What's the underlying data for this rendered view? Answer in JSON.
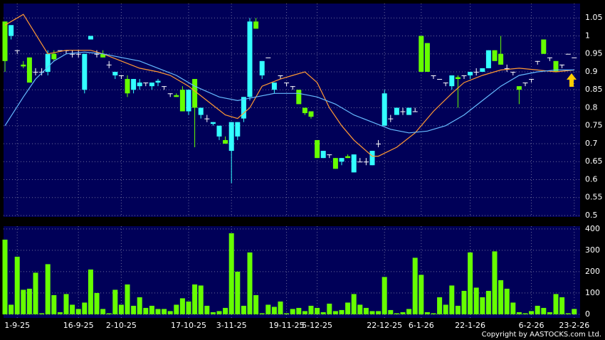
{
  "chart_data": [
    {
      "type": "candlestick",
      "categories": [
        null,
        null,
        "1-9-25",
        null,
        null,
        null,
        null,
        null,
        null,
        null,
        null,
        null,
        "16-9-25",
        null,
        null,
        null,
        null,
        null,
        null,
        "2-10-25",
        null,
        null,
        null,
        null,
        null,
        null,
        null,
        null,
        null,
        null,
        "17-10-25",
        null,
        null,
        null,
        null,
        null,
        null,
        "3-11-25",
        null,
        null,
        null,
        null,
        null,
        null,
        null,
        null,
        "19-11-25",
        null,
        null,
        null,
        null,
        "5-12-25",
        null,
        null,
        null,
        null,
        null,
        null,
        null,
        null,
        null,
        null,
        "22-12-25",
        null,
        null,
        null,
        null,
        null,
        "6-1-26",
        null,
        null,
        null,
        null,
        null,
        null,
        null,
        "22-1-26",
        null,
        null,
        null,
        null,
        null,
        null,
        null,
        null,
        null,
        "6-2-26",
        null,
        null,
        null,
        null,
        null,
        null,
        "23-2-26"
      ],
      "open": [
        1.04,
        1.0,
        0.96,
        0.92,
        0.94,
        0.9,
        0.9,
        0.9,
        0.95,
        0.96,
        0.96,
        0.95,
        0.95,
        0.85,
        0.99,
        0.95,
        0.95,
        0.92,
        0.89,
        0.89,
        0.88,
        0.85,
        0.86,
        0.87,
        0.86,
        0.87,
        0.86,
        0.84,
        0.835,
        0.85,
        0.79,
        0.88,
        0.78,
        0.77,
        0.755,
        0.72,
        0.71,
        0.68,
        0.72,
        0.77,
        0.83,
        1.04,
        0.89,
        0.94,
        0.85,
        0.89,
        0.87,
        0.86,
        0.85,
        0.8,
        0.79,
        0.71,
        0.66,
        0.67,
        0.66,
        0.65,
        0.665,
        0.62,
        0.65,
        0.65,
        0.64,
        0.7,
        0.75,
        0.77,
        0.78,
        0.79,
        0.78,
        0.79,
        1.0,
        0.98,
        0.89,
        0.88,
        0.87,
        0.86,
        0.885,
        0.89,
        0.89,
        0.9,
        0.9,
        0.91,
        0.96,
        0.95,
        0.91,
        0.9,
        0.86,
        0.87,
        0.88,
        0.93,
        0.99,
        0.94,
        0.93,
        0.92,
        0.95,
        0.94
      ],
      "high": [
        1.04,
        1.03,
        0.96,
        0.93,
        0.94,
        0.91,
        0.91,
        0.96,
        0.96,
        0.96,
        0.96,
        0.96,
        0.96,
        0.95,
        1.0,
        0.96,
        0.96,
        0.93,
        0.9,
        0.89,
        0.89,
        0.88,
        0.88,
        0.87,
        0.87,
        0.88,
        0.86,
        0.84,
        0.84,
        0.86,
        0.85,
        0.88,
        0.8,
        0.78,
        0.76,
        0.75,
        0.72,
        0.76,
        0.76,
        0.83,
        1.05,
        1.05,
        0.93,
        0.94,
        0.87,
        0.89,
        0.87,
        0.86,
        0.85,
        0.8,
        0.79,
        0.71,
        0.68,
        0.67,
        0.66,
        0.66,
        0.67,
        0.67,
        0.66,
        0.66,
        0.68,
        0.71,
        0.85,
        0.78,
        0.8,
        0.8,
        0.8,
        0.8,
        1.0,
        0.98,
        0.89,
        0.88,
        0.87,
        0.89,
        0.89,
        0.89,
        0.9,
        0.91,
        0.91,
        0.96,
        0.96,
        1.0,
        0.92,
        0.9,
        0.86,
        0.87,
        0.88,
        0.93,
        0.99,
        0.94,
        0.93,
        0.92,
        0.95,
        0.94
      ],
      "low": [
        0.9,
        0.99,
        0.95,
        0.91,
        0.87,
        0.89,
        0.89,
        0.89,
        0.93,
        0.96,
        0.95,
        0.94,
        0.94,
        0.84,
        0.99,
        0.94,
        0.94,
        0.91,
        0.88,
        0.88,
        0.83,
        0.84,
        0.85,
        0.86,
        0.85,
        0.86,
        0.85,
        0.83,
        0.83,
        0.79,
        0.78,
        0.69,
        0.77,
        0.76,
        0.75,
        0.71,
        0.7,
        0.59,
        0.71,
        0.76,
        0.82,
        1.02,
        0.88,
        0.94,
        0.84,
        0.88,
        0.86,
        0.85,
        0.81,
        0.78,
        0.77,
        0.66,
        0.66,
        0.66,
        0.63,
        0.64,
        0.66,
        0.62,
        0.65,
        0.64,
        0.64,
        0.69,
        0.75,
        0.76,
        0.78,
        0.78,
        0.78,
        0.79,
        0.9,
        0.9,
        0.88,
        0.88,
        0.86,
        0.85,
        0.8,
        0.88,
        0.88,
        0.89,
        0.9,
        0.91,
        0.93,
        0.92,
        0.9,
        0.89,
        0.81,
        0.86,
        0.87,
        0.92,
        0.95,
        0.93,
        0.9,
        0.91,
        0.95,
        0.94
      ],
      "close": [
        0.93,
        1.03,
        0.96,
        0.915,
        0.87,
        0.9,
        0.9,
        0.95,
        0.935,
        0.96,
        0.96,
        0.95,
        0.95,
        0.95,
        1.0,
        0.95,
        0.94,
        0.92,
        0.9,
        0.89,
        0.84,
        0.88,
        0.87,
        0.87,
        0.87,
        0.875,
        0.86,
        0.84,
        0.83,
        0.79,
        0.85,
        0.8,
        0.8,
        0.77,
        0.76,
        0.75,
        0.7,
        0.76,
        0.76,
        0.83,
        1.04,
        1.02,
        0.93,
        0.94,
        0.87,
        0.89,
        0.87,
        0.86,
        0.81,
        0.785,
        0.775,
        0.66,
        0.68,
        0.67,
        0.63,
        0.66,
        0.66,
        0.67,
        0.65,
        0.65,
        0.68,
        0.7,
        0.84,
        0.77,
        0.8,
        0.79,
        0.8,
        0.79,
        0.9,
        0.9,
        0.89,
        0.88,
        0.87,
        0.89,
        0.88,
        0.89,
        0.9,
        0.9,
        0.91,
        0.96,
        0.93,
        0.92,
        0.91,
        0.9,
        0.85,
        0.87,
        0.88,
        0.93,
        0.95,
        0.94,
        0.9,
        0.92,
        0.95,
        0.94
      ],
      "up_color": "#33ffff",
      "down_color": "#66ff00",
      "flat_color": "#ffffff",
      "lines": [
        {
          "color": "#ff9933",
          "x": [
            0,
            3,
            7,
            10,
            14,
            16,
            19,
            22,
            25,
            27,
            30,
            33,
            36,
            38,
            40,
            42,
            45,
            47,
            49,
            51,
            53,
            55,
            57,
            59,
            60,
            61,
            64,
            67,
            70,
            73,
            75,
            78,
            81,
            84,
            87,
            90,
            93
          ],
          "values": [
            1.03,
            1.06,
            0.95,
            0.96,
            0.96,
            0.95,
            0.93,
            0.91,
            0.9,
            0.89,
            0.86,
            0.82,
            0.78,
            0.77,
            0.8,
            0.86,
            0.88,
            0.89,
            0.9,
            0.87,
            0.8,
            0.75,
            0.71,
            0.68,
            0.665,
            0.665,
            0.69,
            0.73,
            0.79,
            0.84,
            0.87,
            0.89,
            0.905,
            0.91,
            0.905,
            0.9,
            0.905
          ]
        },
        {
          "color": "#66bbff",
          "x": [
            0,
            3,
            5,
            8,
            10,
            13,
            16,
            19,
            22,
            25,
            28,
            31,
            35,
            38,
            41,
            44,
            48,
            51,
            54,
            57,
            60,
            63,
            66,
            69,
            72,
            75,
            78,
            81,
            84,
            87,
            90,
            93
          ],
          "values": [
            0.75,
            0.83,
            0.88,
            0.93,
            0.95,
            0.955,
            0.95,
            0.94,
            0.93,
            0.91,
            0.89,
            0.86,
            0.83,
            0.82,
            0.83,
            0.84,
            0.84,
            0.83,
            0.81,
            0.78,
            0.76,
            0.74,
            0.73,
            0.735,
            0.75,
            0.78,
            0.82,
            0.86,
            0.89,
            0.9,
            0.905,
            0.905
          ]
        }
      ],
      "ylim": [
        0.496,
        1.09
      ],
      "yticks": [
        0.5,
        0.55,
        0.6,
        0.65,
        0.7,
        0.75,
        0.8,
        0.85,
        0.9,
        0.95,
        1,
        1.05
      ],
      "grid": true
    },
    {
      "type": "bar",
      "values": [
        350,
        45,
        270,
        115,
        120,
        195,
        5,
        235,
        90,
        10,
        95,
        45,
        25,
        55,
        210,
        100,
        25,
        5,
        115,
        45,
        140,
        40,
        80,
        30,
        40,
        25,
        25,
        15,
        45,
        75,
        60,
        140,
        135,
        40,
        10,
        15,
        30,
        380,
        200,
        40,
        290,
        90,
        5,
        45,
        35,
        60,
        5,
        25,
        30,
        15,
        40,
        30,
        10,
        50,
        15,
        20,
        55,
        95,
        45,
        30,
        15,
        15,
        175,
        20,
        5,
        10,
        25,
        265,
        185,
        10,
        5,
        80,
        45,
        135,
        40,
        110,
        290,
        125,
        80,
        110,
        295,
        160,
        120,
        55,
        10,
        5,
        15,
        40,
        30,
        10,
        95,
        80,
        5,
        25
      ],
      "color": "#66ff00",
      "ylim": [
        -17,
        413
      ],
      "yticks": [
        0,
        100,
        200,
        300,
        400
      ],
      "grid": true
    }
  ],
  "copyright": "Copyright by AASTOCKS.com Ltd."
}
